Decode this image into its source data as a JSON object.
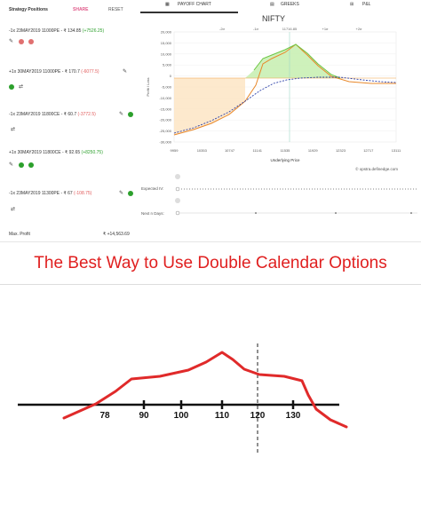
{
  "left_panel": {
    "header": "Strategy Positions",
    "share": "SHARE",
    "reset": "RESET",
    "positions": [
      {
        "text": "-1x 23MAY2019 11000PE - ₹ 134.85",
        "pnl": "(+7526.25)",
        "pnl_sign": "pos"
      },
      {
        "text": "+1x 30MAY2019 11000PE - ₹ 170.7",
        "pnl": "(-6077.5)",
        "pnl_sign": "neg"
      },
      {
        "text": "-1x 23MAY2019 11800CE - ₹ 60.7",
        "pnl": "(-3772.5)",
        "pnl_sign": "neg"
      },
      {
        "text": "+1x 30MAY2019 11800CE - ₹ 92.65",
        "pnl": "(+8250.75)",
        "pnl_sign": "pos"
      },
      {
        "text": "-1x 23MAY2019 11300PE - ₹ 67",
        "pnl": "(-108.75)",
        "pnl_sign": "neg"
      }
    ],
    "max_profit_label": "Max. Profit",
    "max_profit_value": "₹ +14,563.69"
  },
  "tabs": {
    "payoff": "PAYOFF CHART",
    "greeks": "GREEKS",
    "pl": "P&L"
  },
  "payoff_chart": {
    "title": "NIFTY",
    "legend_note": "1% chart by amCharts",
    "ylabel": "Profit / Loss",
    "xlabel": "Underlying Price",
    "credit": "© opstra.definedge.com",
    "y_ticks": [
      "20,000",
      "15,000",
      "10,000",
      "5,000",
      "0",
      "-5,000",
      "-10,000",
      "-15,000",
      "-20,000",
      "-25,000",
      "-30,000"
    ],
    "x_ticks": [
      "9959",
      "10353",
      "10747",
      "11141",
      "11535",
      "11929",
      "12323",
      "12717",
      "13111"
    ],
    "top_ticks": [
      "-2σ",
      "-1σ",
      "11716.85",
      "+1σ",
      "+2σ"
    ],
    "expected_iv_label": "Expected IV:",
    "next_days_label": "Next n Days:"
  },
  "headline": "The Best Way to Use Double Calendar Options",
  "chart_data": {
    "type": "line",
    "x_ticks": [
      "78",
      "90",
      "100",
      "110",
      "120",
      "130"
    ],
    "marker_at": "120"
  },
  "colors": {
    "profit_fill": "#c9efb4",
    "loss_fill": "#fde3c0",
    "expiry_line": "#6cc644",
    "today_line": "#2b3fa8",
    "headline": "#e02020",
    "payoff_red": "#e02a2a"
  }
}
